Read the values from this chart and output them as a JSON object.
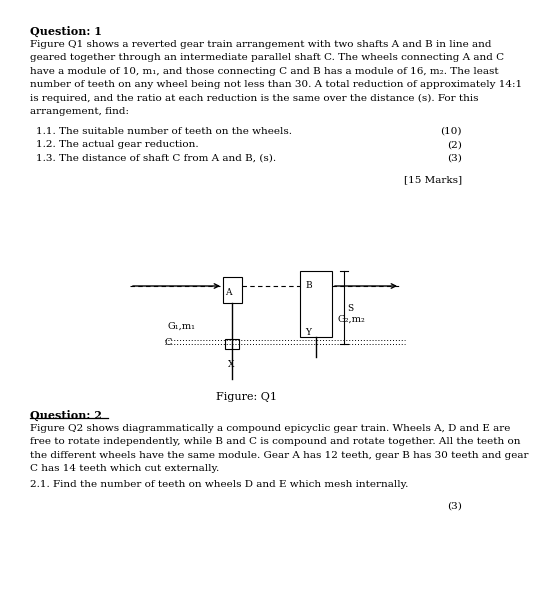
{
  "title_q1": "Question: 1",
  "q1_body_lines": [
    "Figure Q1 shows a reverted gear train arrangement with two shafts A and B in line and",
    "geared together through an intermediate parallel shaft C. The wheels connecting A and C",
    "have a module of 10, m₁, and those connecting C and B has a module of 16, m₂. The least",
    "number of teeth on any wheel being not less than 30. A total reduction of approximately 14:1",
    "is required, and the ratio at each reduction is the same over the distance (s). For this",
    "arrangement, find:"
  ],
  "items_q1": [
    [
      "1.1. The suitable number of teeth on the wheels.",
      "(10)"
    ],
    [
      "1.2. The actual gear reduction.",
      "(2)"
    ],
    [
      "1.3. The distance of shaft C from A and B, (s).",
      "(3)"
    ]
  ],
  "marks_q1": "[15 Marks]",
  "figure_caption": "Figure: Q1",
  "title_q2": "Question: 2",
  "q2_body_lines": [
    "Figure Q2 shows diagrammatically a compound epicyclic gear train. Wheels A, D and E are",
    "free to rotate independently, while B and C is compound and rotate together. All the teeth on",
    "the different wheels have the same module. Gear A has 12 teeth, gear B has 30 teeth and gear",
    "C has 14 teeth which cut externally."
  ],
  "q2_item": "2.1. Find the number of teeth on wheels D and E which mesh internally.",
  "marks_q2": "(3)",
  "bg_color": "#ffffff"
}
